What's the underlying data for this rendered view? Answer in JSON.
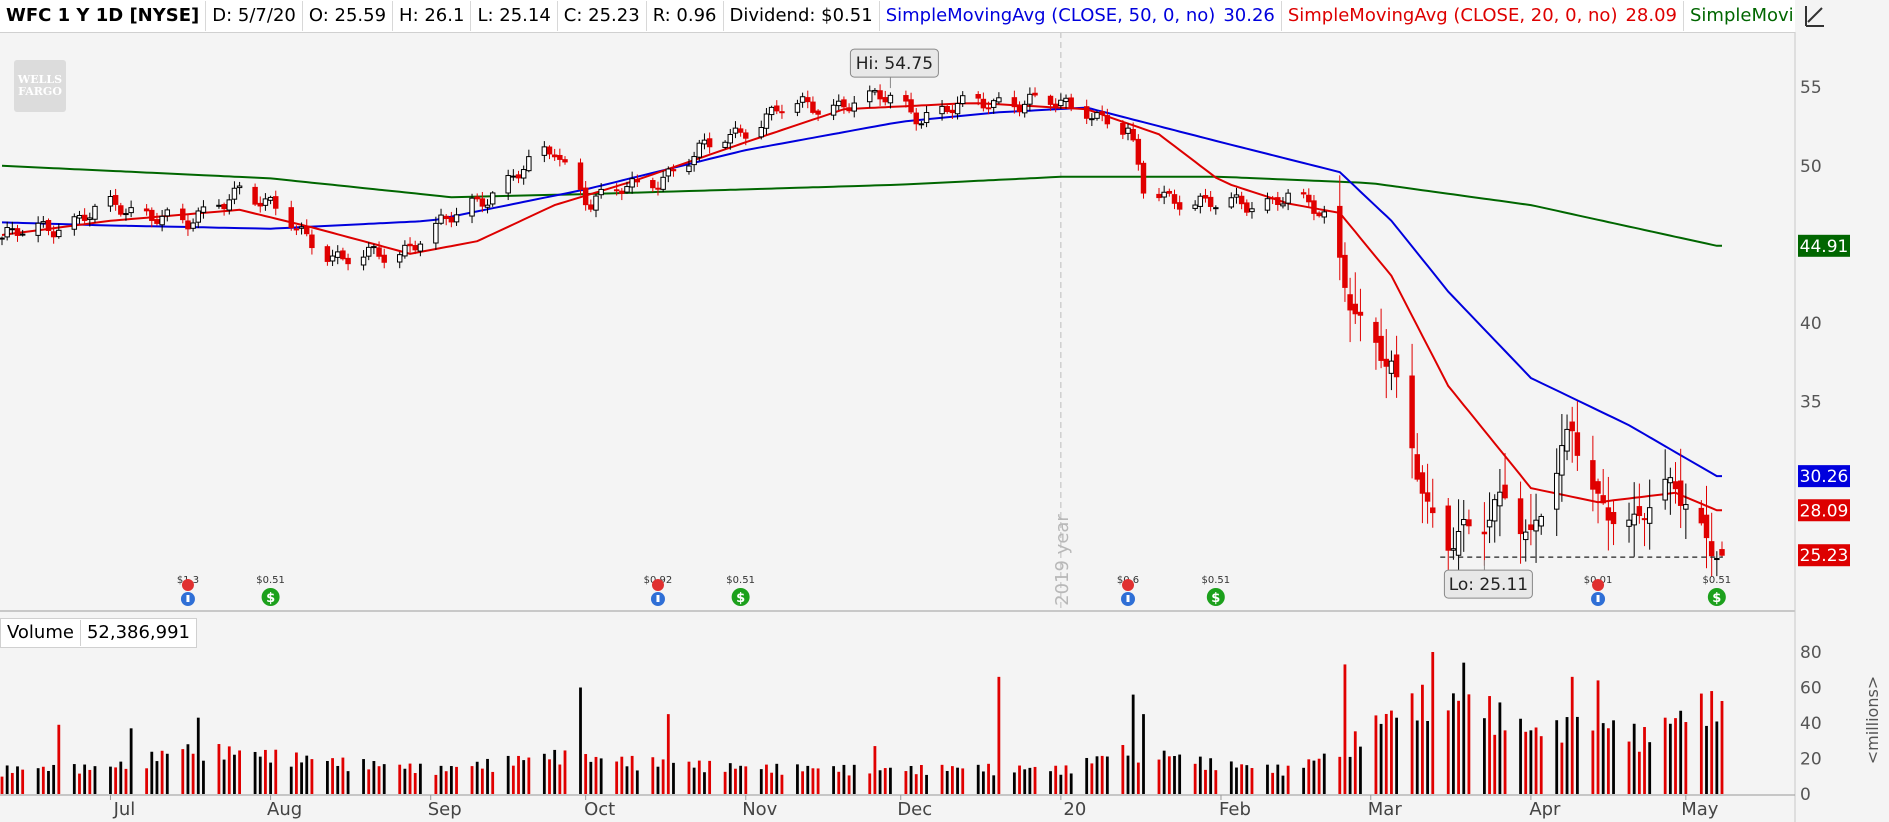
{
  "header": {
    "symbol": "WFC 1 Y 1D [NYSE]",
    "date": "D: 5/7/20",
    "open": "O: 25.59",
    "high": "H: 26.1",
    "low": "L: 25.14",
    "close": "C: 25.23",
    "range": "R: 0.96",
    "dividend": "Dividend: $0.51",
    "sma50_label": "SimpleMovingAvg (CLOSE, 50, 0, no)",
    "sma50_value": "30.26",
    "sma20_label": "SimpleMovingAvg (CLOSE, 20, 0, no)",
    "sma20_value": "28.09",
    "sma200_label": "SimpleMovingAvg (CLOSE, 200, 0,..."
  },
  "logo_text": "WELLS FARGO",
  "volume_header": {
    "label": "Volume",
    "value": "52,386,991"
  },
  "colors": {
    "up": "#000000",
    "down": "#e00000",
    "sma50": "#0000dd",
    "sma20": "#dd0000",
    "sma200": "#006600",
    "event_red": "#e03030",
    "event_blue": "#2f6fd6",
    "dividend_green": "#1ca01c"
  },
  "chart_data": {
    "type": "candlestick",
    "price_axis": {
      "ticks": [
        35,
        40,
        45,
        50,
        55
      ],
      "ylim": [
        22,
        58
      ]
    },
    "volume_axis": {
      "ticks": [
        0,
        20,
        40,
        60,
        80
      ],
      "ylim": [
        0,
        80
      ],
      "unit_label": "<millions>"
    },
    "x_axis": {
      "tick_labels": [
        {
          "label": "Jul",
          "date": "2019-07-01"
        },
        {
          "label": "Aug",
          "date": "2019-08-01"
        },
        {
          "label": "Sep",
          "date": "2019-09-01"
        },
        {
          "label": "Oct",
          "date": "2019-10-01"
        },
        {
          "label": "Nov",
          "date": "2019-11-01"
        },
        {
          "label": "Dec",
          "date": "2019-12-01"
        },
        {
          "label": "20",
          "date": "2020-01-01"
        },
        {
          "label": "Feb",
          "date": "2020-02-01"
        },
        {
          "label": "Mar",
          "date": "2020-03-01"
        },
        {
          "label": "Apr",
          "date": "2020-04-01"
        },
        {
          "label": "May",
          "date": "2020-05-01"
        }
      ],
      "range": [
        "2019-06-10",
        "2020-05-08"
      ]
    },
    "year_divider": {
      "label": "2019 year",
      "date": "2020-01-01"
    },
    "price_badges": [
      {
        "value": "44.91",
        "price": 44.91,
        "color": "#006600"
      },
      {
        "value": "30.26",
        "price": 30.26,
        "color": "#0000dd"
      },
      {
        "value": "28.09",
        "price": 28.09,
        "color": "#dd0000"
      },
      {
        "value": "25.23",
        "price": 25.23,
        "color": "#dd0000"
      }
    ],
    "annotations": {
      "hi": {
        "label": "Hi: 54.75",
        "price": 54.75,
        "date": "2019-11-29"
      },
      "lo": {
        "label": "Lo: 25.11",
        "price": 25.11,
        "date": "2020-03-23"
      },
      "low_line": {
        "price": 25.11,
        "from": "2020-03-16",
        "to": "2020-05-07"
      }
    },
    "events": [
      {
        "date": "2019-07-16",
        "type": "earnings",
        "label": "$1.3"
      },
      {
        "date": "2019-08-01",
        "type": "dividend",
        "label": "$0.51"
      },
      {
        "date": "2019-10-15",
        "type": "earnings",
        "label": "$0.92"
      },
      {
        "date": "2019-10-31",
        "type": "dividend",
        "label": "$0.51"
      },
      {
        "date": "2020-01-14",
        "type": "earnings",
        "label": "$0.6"
      },
      {
        "date": "2020-01-31",
        "type": "dividend",
        "label": "$0.51"
      },
      {
        "date": "2020-04-14",
        "type": "earnings",
        "label": "$0.01"
      },
      {
        "date": "2020-05-07",
        "type": "dividend",
        "label": "$0.51"
      }
    ],
    "price_anchors": [
      [
        "2019-06-10",
        45.4
      ],
      [
        "2019-06-20",
        46.2
      ],
      [
        "2019-07-01",
        47.3
      ],
      [
        "2019-07-10",
        47.0
      ],
      [
        "2019-07-16",
        46.1
      ],
      [
        "2019-07-26",
        48.7
      ],
      [
        "2019-08-05",
        46.3
      ],
      [
        "2019-08-15",
        43.9
      ],
      [
        "2019-08-26",
        44.6
      ],
      [
        "2019-09-05",
        46.6
      ],
      [
        "2019-09-16",
        49.1
      ],
      [
        "2019-09-25",
        51.0
      ],
      [
        "2019-10-02",
        47.7
      ],
      [
        "2019-10-15",
        49.2
      ],
      [
        "2019-10-28",
        51.8
      ],
      [
        "2019-11-08",
        53.6
      ],
      [
        "2019-11-29",
        54.3
      ],
      [
        "2019-12-05",
        53.2
      ],
      [
        "2019-12-20",
        54.2
      ],
      [
        "2020-01-06",
        53.7
      ],
      [
        "2020-01-14",
        52.1
      ],
      [
        "2020-01-17",
        48.5
      ],
      [
        "2020-01-31",
        47.4
      ],
      [
        "2020-02-14",
        48.0
      ],
      [
        "2020-02-21",
        46.8
      ],
      [
        "2020-02-28",
        40.0
      ],
      [
        "2020-03-05",
        36.8
      ],
      [
        "2020-03-09",
        32.0
      ],
      [
        "2020-03-12",
        28.5
      ],
      [
        "2020-03-16",
        26.3
      ],
      [
        "2020-03-23",
        26.8
      ],
      [
        "2020-03-27",
        29.5
      ],
      [
        "2020-04-01",
        26.5
      ],
      [
        "2020-04-09",
        33.0
      ],
      [
        "2020-04-14",
        28.9
      ],
      [
        "2020-04-21",
        27.0
      ],
      [
        "2020-04-29",
        30.0
      ],
      [
        "2020-05-07",
        25.23
      ]
    ],
    "volume_anchors": [
      [
        "2019-06-10",
        14
      ],
      [
        "2019-07-01",
        15
      ],
      [
        "2019-07-16",
        26
      ],
      [
        "2019-08-01",
        22
      ],
      [
        "2019-08-15",
        18
      ],
      [
        "2019-09-03",
        14
      ],
      [
        "2019-09-25",
        22
      ],
      [
        "2019-10-01",
        20
      ],
      [
        "2019-10-15",
        18
      ],
      [
        "2019-11-01",
        15
      ],
      [
        "2019-12-02",
        14
      ],
      [
        "2019-12-16",
        15
      ],
      [
        "2020-01-02",
        14
      ],
      [
        "2020-01-14",
        26
      ],
      [
        "2020-01-31",
        17
      ],
      [
        "2020-02-14",
        14
      ],
      [
        "2020-02-24",
        24
      ],
      [
        "2020-03-03",
        42
      ],
      [
        "2020-03-12",
        55
      ],
      [
        "2020-03-23",
        50
      ],
      [
        "2020-04-01",
        35
      ],
      [
        "2020-04-14",
        40
      ],
      [
        "2020-04-23",
        33
      ],
      [
        "2020-05-04",
        50
      ],
      [
        "2020-05-07",
        52
      ]
    ],
    "volume_spikes": [
      [
        "2019-06-21",
        39
      ],
      [
        "2019-07-05",
        37
      ],
      [
        "2019-07-18",
        43
      ],
      [
        "2019-09-30",
        60
      ],
      [
        "2019-10-17",
        45
      ],
      [
        "2019-11-26",
        27
      ],
      [
        "2019-12-20",
        66
      ],
      [
        "2020-01-15",
        56
      ],
      [
        "2020-01-17",
        45
      ],
      [
        "2020-02-25",
        73
      ],
      [
        "2020-03-13",
        80
      ],
      [
        "2020-03-19",
        74
      ],
      [
        "2020-04-09",
        66
      ],
      [
        "2020-04-14",
        64
      ],
      [
        "2020-05-06",
        58
      ]
    ],
    "sma_anchors": {
      "sma200": [
        [
          "2019-06-10",
          50.0
        ],
        [
          "2019-08-01",
          49.2
        ],
        [
          "2019-09-05",
          48.0
        ],
        [
          "2019-10-01",
          48.2
        ],
        [
          "2019-11-01",
          48.5
        ],
        [
          "2019-12-01",
          48.8
        ],
        [
          "2020-01-01",
          49.3
        ],
        [
          "2020-02-01",
          49.3
        ],
        [
          "2020-03-01",
          48.9
        ],
        [
          "2020-04-01",
          47.5
        ],
        [
          "2020-05-07",
          44.91
        ]
      ],
      "sma50": [
        [
          "2019-06-10",
          46.4
        ],
        [
          "2019-07-01",
          46.2
        ],
        [
          "2019-08-01",
          46.0
        ],
        [
          "2019-09-01",
          46.5
        ],
        [
          "2019-10-01",
          48.5
        ],
        [
          "2019-11-01",
          51.0
        ],
        [
          "2019-12-01",
          52.8
        ],
        [
          "2019-12-20",
          53.4
        ],
        [
          "2020-01-06",
          53.7
        ],
        [
          "2020-02-01",
          51.5
        ],
        [
          "2020-02-24",
          49.6
        ],
        [
          "2020-03-05",
          46.5
        ],
        [
          "2020-03-16",
          42.0
        ],
        [
          "2020-04-01",
          36.5
        ],
        [
          "2020-04-20",
          33.5
        ],
        [
          "2020-05-07",
          30.26
        ]
      ],
      "sma20": [
        [
          "2019-06-10",
          45.6
        ],
        [
          "2019-07-01",
          46.5
        ],
        [
          "2019-07-26",
          47.2
        ],
        [
          "2019-08-10",
          46.0
        ],
        [
          "2019-08-28",
          44.4
        ],
        [
          "2019-09-10",
          45.2
        ],
        [
          "2019-09-25",
          47.5
        ],
        [
          "2019-10-10",
          49.0
        ],
        [
          "2019-11-01",
          51.5
        ],
        [
          "2019-11-20",
          53.6
        ],
        [
          "2019-12-15",
          54.0
        ],
        [
          "2020-01-06",
          53.6
        ],
        [
          "2020-01-20",
          52.0
        ],
        [
          "2020-02-01",
          49.0
        ],
        [
          "2020-02-14",
          47.6
        ],
        [
          "2020-02-24",
          47.0
        ],
        [
          "2020-03-05",
          43.0
        ],
        [
          "2020-03-16",
          36.0
        ],
        [
          "2020-04-01",
          29.5
        ],
        [
          "2020-04-14",
          28.6
        ],
        [
          "2020-04-29",
          29.2
        ],
        [
          "2020-05-07",
          28.09
        ]
      ]
    }
  }
}
